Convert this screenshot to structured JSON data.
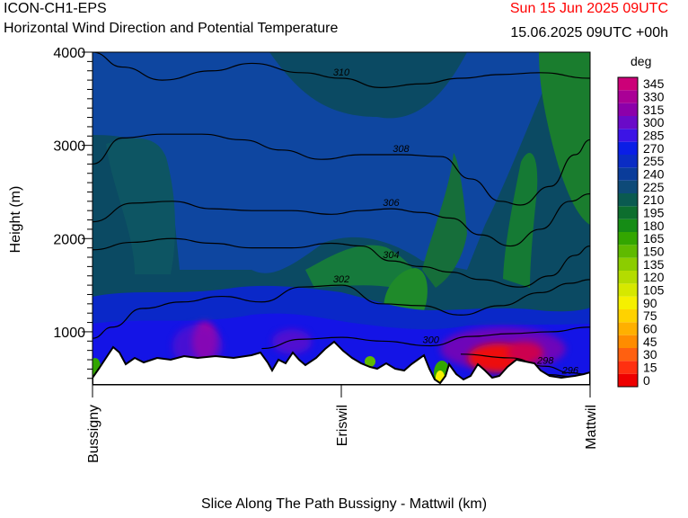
{
  "header": {
    "model": "ICON-CH1-EPS",
    "valid_time": "Sun 15 Jun 2025 09UTC",
    "run_info": "15.06.2025 09UTC +00h"
  },
  "colors": {
    "valid_time": "#ff0000",
    "terrain_fill": "#ffffff",
    "contour": "#000000"
  },
  "chart_data": {
    "type": "heatmap",
    "title": "Horizontal Wind Direction and Potential Temperature",
    "xlabel": "Slice Along The Path Bussigny - Mattwil (km)",
    "ylabel": "Height (m)",
    "ylim": [
      430,
      4000
    ],
    "y_ticks": [
      1000,
      2000,
      3000,
      4000
    ],
    "x_ticks": [
      {
        "label": "Bussigny",
        "pos": 0
      },
      {
        "label": "Eriswil",
        "pos": 0.5
      },
      {
        "label": "Mattwil",
        "pos": 1
      }
    ],
    "colorbar": {
      "unit": "deg",
      "levels": [
        0,
        15,
        30,
        45,
        60,
        75,
        90,
        105,
        120,
        135,
        150,
        165,
        180,
        195,
        210,
        225,
        240,
        255,
        270,
        285,
        300,
        315,
        330,
        345
      ],
      "colors": [
        "#ee0000",
        "#ff3010",
        "#ff6010",
        "#ff8c00",
        "#ffb000",
        "#ffd200",
        "#f5f000",
        "#d6e800",
        "#b4dc00",
        "#8ccd00",
        "#5fba00",
        "#33a600",
        "#158c15",
        "#0d6e2e",
        "#0a5a50",
        "#0e4a78",
        "#0a3c9a",
        "#0a2cc4",
        "#0a1ee6",
        "#3c14e6",
        "#6a0ac8",
        "#8c00aa",
        "#aa0096",
        "#cc0078"
      ]
    },
    "theta_contours": [
      {
        "label": "296",
        "points": [
          [
            0.86,
            550
          ],
          [
            0.92,
            540
          ],
          [
            0.96,
            520
          ],
          [
            1.0,
            500
          ]
        ]
      },
      {
        "label": "298",
        "points": [
          [
            0.74,
            760
          ],
          [
            0.84,
            720
          ],
          [
            0.91,
            630
          ],
          [
            0.96,
            560
          ],
          [
            1.0,
            540
          ]
        ]
      },
      {
        "label": "300",
        "points": [
          [
            0.34,
            820
          ],
          [
            0.42,
            920
          ],
          [
            0.5,
            940
          ],
          [
            0.58,
            900
          ],
          [
            0.68,
            850
          ],
          [
            0.76,
            950
          ],
          [
            0.84,
            980
          ],
          [
            0.92,
            1000
          ],
          [
            1.0,
            1050
          ]
        ]
      },
      {
        "label": "302",
        "points": [
          [
            0.0,
            930
          ],
          [
            0.04,
            1050
          ],
          [
            0.1,
            1250
          ],
          [
            0.18,
            1320
          ],
          [
            0.26,
            1380
          ],
          [
            0.34,
            1320
          ],
          [
            0.42,
            1480
          ],
          [
            0.5,
            1500
          ],
          [
            0.58,
            1300
          ],
          [
            0.66,
            1280
          ],
          [
            0.74,
            1180
          ],
          [
            0.82,
            1280
          ],
          [
            0.9,
            1420
          ],
          [
            0.96,
            1520
          ],
          [
            1.0,
            1560
          ]
        ]
      },
      {
        "label": "304",
        "points": [
          [
            0.0,
            1880
          ],
          [
            0.08,
            1960
          ],
          [
            0.16,
            2000
          ],
          [
            0.24,
            1950
          ],
          [
            0.32,
            1900
          ],
          [
            0.4,
            1900
          ],
          [
            0.48,
            1950
          ],
          [
            0.54,
            1920
          ],
          [
            0.6,
            1760
          ],
          [
            0.66,
            1700
          ],
          [
            0.72,
            1640
          ],
          [
            0.78,
            1560
          ],
          [
            0.86,
            1480
          ],
          [
            0.92,
            1600
          ],
          [
            0.97,
            1820
          ],
          [
            1.0,
            1920
          ]
        ]
      },
      {
        "label": "306",
        "points": [
          [
            0.0,
            2180
          ],
          [
            0.08,
            2380
          ],
          [
            0.16,
            2400
          ],
          [
            0.24,
            2320
          ],
          [
            0.32,
            2300
          ],
          [
            0.4,
            2300
          ],
          [
            0.48,
            2260
          ],
          [
            0.54,
            2300
          ],
          [
            0.6,
            2320
          ],
          [
            0.66,
            2280
          ],
          [
            0.72,
            2220
          ],
          [
            0.78,
            2040
          ],
          [
            0.84,
            1920
          ],
          [
            0.9,
            2100
          ],
          [
            0.96,
            2400
          ],
          [
            1.0,
            2480
          ]
        ]
      },
      {
        "label": "308",
        "points": [
          [
            0.0,
            2800
          ],
          [
            0.06,
            3080
          ],
          [
            0.14,
            3120
          ],
          [
            0.22,
            3120
          ],
          [
            0.3,
            3060
          ],
          [
            0.38,
            2950
          ],
          [
            0.46,
            2850
          ],
          [
            0.54,
            2900
          ],
          [
            0.62,
            2900
          ],
          [
            0.7,
            2880
          ],
          [
            0.76,
            2640
          ],
          [
            0.82,
            2400
          ],
          [
            0.86,
            2360
          ],
          [
            0.92,
            2560
          ],
          [
            0.97,
            2900
          ],
          [
            1.0,
            3060
          ]
        ]
      },
      {
        "label": "310",
        "points": [
          [
            0.0,
            4000
          ],
          [
            0.06,
            3840
          ],
          [
            0.14,
            3700
          ],
          [
            0.24,
            3800
          ],
          [
            0.32,
            3880
          ],
          [
            0.42,
            3780
          ],
          [
            0.5,
            3720
          ],
          [
            0.58,
            3620
          ],
          [
            0.66,
            3660
          ],
          [
            0.74,
            3720
          ],
          [
            0.82,
            3760
          ],
          [
            0.9,
            3780
          ],
          [
            1.0,
            3720
          ]
        ]
      }
    ]
  },
  "axes_text": {
    "model_label": "ICON-CH1-EPS"
  }
}
